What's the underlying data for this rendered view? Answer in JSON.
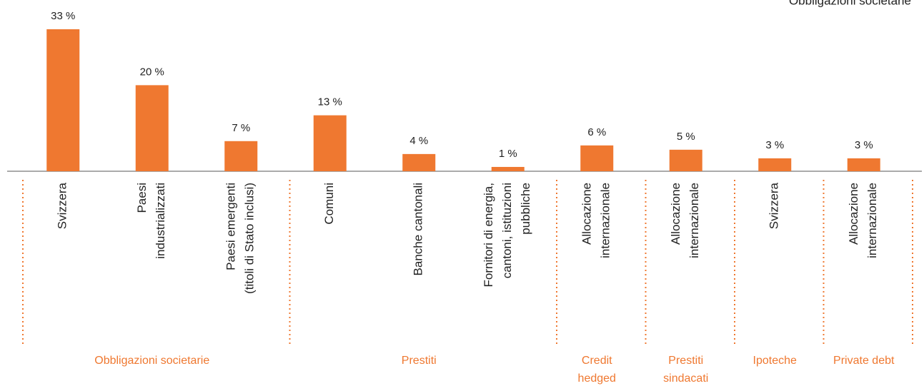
{
  "chart_data": {
    "type": "bar",
    "annotation": "Obbligazioni societarie",
    "categories": [
      [
        "Svizzera"
      ],
      [
        "Paesi",
        "industrializzati"
      ],
      [
        "Paesi emergenti",
        "(titoli di Stato inclusi)"
      ],
      [
        "Comuni"
      ],
      [
        "Banche cantonali"
      ],
      [
        "Fornitori di energia,",
        "cantoni, istituzioni",
        "pubbliche"
      ],
      [
        "Allocazione",
        "internazionale"
      ],
      [
        "Allocazione",
        "internazionale"
      ],
      [
        "Svizzera"
      ],
      [
        "Allocazione",
        "internazionale"
      ]
    ],
    "values": [
      33,
      20,
      7,
      13,
      4,
      1,
      6,
      5,
      3,
      3
    ],
    "value_labels": [
      "33 %",
      "20 %",
      "7 %",
      "13 %",
      "4 %",
      "1 %",
      "6 %",
      "5 %",
      "3 %",
      "3 %"
    ],
    "groups": [
      {
        "label": [
          "Obbligazioni societarie"
        ],
        "size": 3
      },
      {
        "label": [
          "Prestiti"
        ],
        "size": 3
      },
      {
        "label": [
          "Credit",
          "hedged"
        ],
        "size": 1
      },
      {
        "label": [
          "Prestiti",
          "sindacati"
        ],
        "size": 1
      },
      {
        "label": [
          "Ipoteche"
        ],
        "size": 1
      },
      {
        "label": [
          "Private debt"
        ],
        "size": 1
      }
    ],
    "color": "#ef7830",
    "ylim": [
      0,
      33
    ]
  }
}
